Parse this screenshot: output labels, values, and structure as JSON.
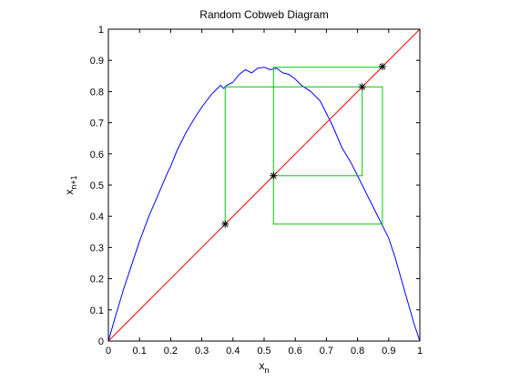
{
  "chart_data": {
    "type": "line",
    "title": "Random Cobweb Diagram",
    "xlabel": {
      "base": "x",
      "subscript": "n"
    },
    "ylabel": {
      "base": "x",
      "subscript": "n+1"
    },
    "xlim": [
      0,
      1
    ],
    "ylim": [
      0,
      1
    ],
    "xticks": [
      0,
      0.1,
      0.2,
      0.3,
      0.4,
      0.5,
      0.6,
      0.7,
      0.8,
      0.9,
      1
    ],
    "yticks": [
      0,
      0.1,
      0.2,
      0.3,
      0.4,
      0.5,
      0.6,
      0.7,
      0.8,
      0.9,
      1
    ],
    "xtick_labels": [
      "0",
      "0.1",
      "0.2",
      "0.3",
      "0.4",
      "0.5",
      "0.6",
      "0.7",
      "0.8",
      "0.9",
      "1"
    ],
    "ytick_labels": [
      "0",
      "0.1",
      "0.2",
      "0.3",
      "0.4",
      "0.5",
      "0.6",
      "0.7",
      "0.8",
      "0.9",
      "1"
    ],
    "grid": false,
    "colors": {
      "map_curve": "#0000ff",
      "identity_line": "#ff0000",
      "cobweb": "#00cc00",
      "points": "#000000"
    },
    "series": [
      {
        "role": "map_curve",
        "x": [
          0,
          0.02,
          0.05,
          0.08,
          0.1,
          0.13,
          0.16,
          0.19,
          0.2,
          0.22,
          0.25,
          0.28,
          0.3,
          0.33,
          0.35,
          0.36,
          0.37,
          0.38,
          0.4,
          0.42,
          0.44,
          0.46,
          0.48,
          0.5,
          0.52,
          0.54,
          0.56,
          0.58,
          0.6,
          0.62,
          0.65,
          0.68,
          0.7,
          0.72,
          0.75,
          0.78,
          0.8,
          0.82,
          0.84,
          0.86,
          0.88,
          0.9,
          0.92,
          0.94,
          0.96,
          0.98,
          1
        ],
        "y": [
          0,
          0.07,
          0.17,
          0.26,
          0.32,
          0.4,
          0.47,
          0.54,
          0.56,
          0.61,
          0.67,
          0.72,
          0.75,
          0.79,
          0.81,
          0.82,
          0.81,
          0.82,
          0.83,
          0.855,
          0.87,
          0.86,
          0.875,
          0.878,
          0.87,
          0.875,
          0.86,
          0.855,
          0.84,
          0.82,
          0.8,
          0.77,
          0.73,
          0.69,
          0.62,
          0.57,
          0.53,
          0.49,
          0.45,
          0.41,
          0.37,
          0.33,
          0.27,
          0.2,
          0.13,
          0.06,
          0
        ]
      },
      {
        "role": "identity_line",
        "x": [
          0,
          1
        ],
        "y": [
          0,
          1
        ]
      },
      {
        "role": "cobweb",
        "x": [
          0.375,
          0.375,
          0.88,
          0.88,
          0.53,
          0.53,
          0.815,
          0.815,
          0.375
        ],
        "y": [
          0.375,
          0.815,
          0.815,
          0.375,
          0.375,
          0.53,
          0.53,
          0.815,
          0.815
        ]
      },
      {
        "role": "cobweb",
        "x": [
          0.53,
          0.53,
          0.88,
          0.88
        ],
        "y": [
          0.53,
          0.878,
          0.878,
          0.88
        ]
      }
    ],
    "points": [
      {
        "x": 0.375,
        "y": 0.375
      },
      {
        "x": 0.53,
        "y": 0.53
      },
      {
        "x": 0.815,
        "y": 0.815
      },
      {
        "x": 0.88,
        "y": 0.88
      }
    ]
  }
}
